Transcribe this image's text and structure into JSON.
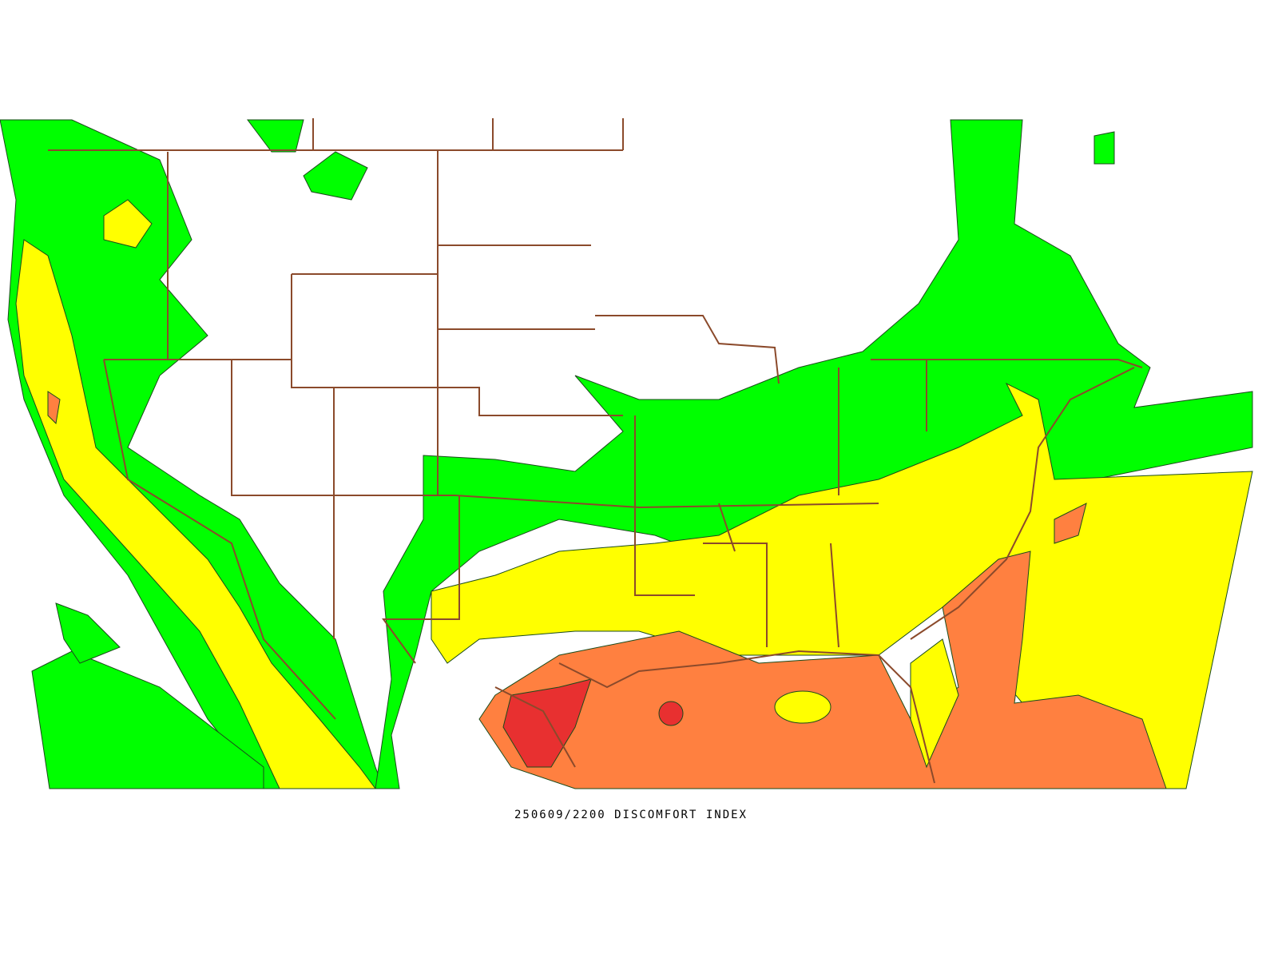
{
  "caption": "250609/2200 DISCOMFORT INDEX"
}
